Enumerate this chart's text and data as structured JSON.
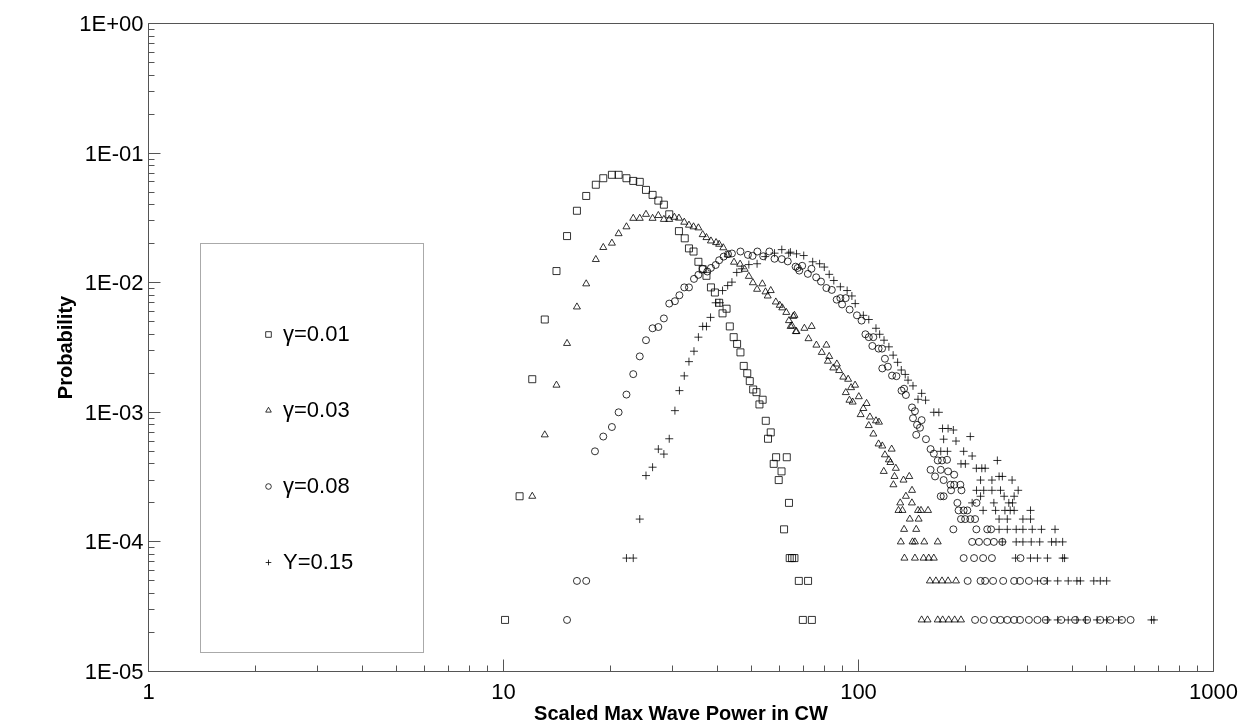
{
  "chart_data": {
    "type": "scatter",
    "xlabel": "Scaled Max Wave Power in CW",
    "ylabel": "Probability",
    "log": "xy",
    "xlim": [
      1,
      1000
    ],
    "xticks": [
      1,
      10,
      100,
      1000
    ],
    "ylim": [
      1e-05,
      1
    ],
    "yticks": [
      {
        "value": 1,
        "label": "1E+00"
      },
      {
        "value": 0.1,
        "label": "1E-01"
      },
      {
        "value": 0.01,
        "label": "1E-02"
      },
      {
        "value": 0.001,
        "label": "1E-03"
      },
      {
        "value": 0.0001,
        "label": "1E-04"
      },
      {
        "value": 1e-05,
        "label": "1E-05"
      }
    ],
    "grid": false,
    "legend": "left",
    "series": [
      {
        "name": "γ=0.01",
        "color": "#000000",
        "marker": "square",
        "x": [
          10.1,
          11.1,
          12.05,
          13.07,
          14.1,
          15.1,
          16.1,
          17.1,
          18.2,
          19.1,
          20.2,
          21.1,
          22.2,
          23.2,
          24.2,
          25.2,
          26.3,
          27.3,
          28.3,
          29.3,
          31.2,
          32.4,
          33.3,
          34.3,
          35.4,
          36.4,
          37.3,
          38.4,
          39.4,
          40.5,
          41.4,
          42.5,
          43.4,
          44.5,
          45.5,
          46.5,
          47.5,
          48.6,
          49.4,
          50.5,
          51.6,
          52.6,
          53.7,
          54.8,
          55.6,
          56.6,
          57.7,
          58.6,
          59.6,
          60.7,
          62.8,
          63.7,
          61.7,
          64,
          65,
          66,
          67.9,
          72.1,
          69.7,
          73.9
        ],
        "values": [
          2.5e-05,
          0.000225,
          0.0018,
          0.0052,
          0.0123,
          0.0229,
          0.0359,
          0.0467,
          0.057,
          0.064,
          0.068,
          0.068,
          0.064,
          0.061,
          0.06,
          0.052,
          0.0476,
          0.043,
          0.04,
          0.0337,
          0.025,
          0.022,
          0.0184,
          0.0174,
          0.0145,
          0.0127,
          0.0113,
          0.0092,
          0.0084,
          0.007,
          0.0058,
          0.0063,
          0.0046,
          0.0038,
          0.00337,
          0.0029,
          0.00228,
          0.002,
          0.00174,
          0.0015,
          0.00143,
          0.00115,
          0.00125,
          0.00086,
          0.000625,
          0.0007,
          0.0004,
          0.00045,
          0.0003,
          0.00035,
          0.00045,
          0.0002,
          0.000125,
          7.5e-05,
          7.5e-05,
          7.5e-05,
          5e-05,
          5e-05,
          2.5e-05,
          2.5e-05
        ]
      },
      {
        "name": "γ=0.03",
        "color": "#000000",
        "marker": "triangle",
        "x": [
          12.05,
          13.07,
          14.1,
          15.1,
          16.1,
          17.1,
          18.2,
          19.1,
          20.2,
          21.1,
          22.2,
          23.2,
          24.2,
          25.2,
          26.3,
          27.3,
          28.3,
          29.3,
          30.3,
          31.2,
          32.3,
          33.3,
          34.3,
          35.4,
          36.4,
          37.3,
          38.4,
          39.7,
          40.5,
          41.6,
          42.8,
          44.6,
          46.4,
          47.8,
          49.1,
          50.4,
          51.8,
          53.6,
          54.7,
          56.6,
          55.5,
          58.5,
          60.0,
          62.6,
          63.7,
          65.0,
          66.0,
          66.9,
          61.0,
          65.5,
          64.4,
          66.6,
          70.4,
          73.8,
          72.3,
          76.1,
          78.8,
          81.2,
          82.7,
          82.0,
          84.9,
          86.9,
          88.2,
          90.6,
          93.5,
          92.1,
          95.3,
          97.8,
          94.3,
          96.3,
          100.2,
          103.2,
          105.4,
          101.4,
          107.7,
          112.0,
          114.2,
          106.9,
          110.1,
          113.9,
          116.7,
          118.7,
          124.0,
          121.8,
          123.0,
          127.4,
          117.8,
          126.3,
          133.9,
          139.0,
          125.4,
          141.5,
          136.0,
          131.1,
          141.4,
          129.6,
          133.0,
          147.1,
          150.0,
          157.0,
          139.5,
          147.7,
          134.4,
          145.4,
          131.6,
          142,
          144.2,
          153.2,
          167.2,
          134.7,
          144.2,
          152.5,
          157.7,
          163,
          158.9,
          165.2,
          171.9,
          178.8,
          188.2,
          150.6,
          156.5,
          167.2,
          172.6,
          179.5,
          186.6,
          194.4
        ],
        "values": [
          0.000225,
          0.00067,
          0.00162,
          0.0034,
          0.0065,
          0.0098,
          0.0151,
          0.0187,
          0.0202,
          0.0239,
          0.027,
          0.0314,
          0.0314,
          0.0337,
          0.0314,
          0.033,
          0.0308,
          0.0308,
          0.032,
          0.0315,
          0.0293,
          0.0278,
          0.027,
          0.0265,
          0.0235,
          0.0223,
          0.021,
          0.0204,
          0.0198,
          0.0186,
          0.0164,
          0.0144,
          0.0139,
          0.0127,
          0.0112,
          0.01,
          0.0089,
          0.0098,
          0.0085,
          0.0087,
          0.0079,
          0.0071,
          0.0067,
          0.0059,
          0.0051,
          0.00465,
          0.0056,
          0.0042,
          0.0064,
          0.0055,
          0.0046,
          0.0042,
          0.00445,
          0.0046,
          0.0037,
          0.0033,
          0.0029,
          0.0033,
          0.0027,
          0.00248,
          0.0022,
          0.00236,
          0.0021,
          0.00187,
          0.0018,
          0.00142,
          0.00155,
          0.00162,
          0.00124,
          0.0012,
          0.00132,
          0.00107,
          0.00117,
          0.00096,
          0.00092,
          0.00086,
          0.00084,
          0.00079,
          0.00068,
          0.00057,
          0.00055,
          0.00047,
          0.00052,
          0.00043,
          0.00041,
          0.00037,
          0.00035,
          0.00032,
          0.0003,
          0.00032,
          0.000276,
          0.00025,
          0.000225,
          0.0002,
          0.0002,
          0.000175,
          0.000175,
          0.000175,
          0.000175,
          0.000175,
          0.00015,
          0.00015,
          0.000125,
          0.000125,
          0.0001,
          0.0001,
          0.0001,
          0.0001,
          0.0001,
          7.5e-05,
          7.5e-05,
          7.5e-05,
          7.5e-05,
          7.5e-05,
          5e-05,
          5e-05,
          5e-05,
          5e-05,
          5e-05,
          2.5e-05,
          2.5e-05,
          2.5e-05,
          2.5e-05,
          2.5e-05,
          2.5e-05,
          2.5e-05
        ]
      },
      {
        "name": "γ=0.08",
        "color": "#000000",
        "marker": "circle",
        "x": [
          15.1,
          16.1,
          17.1,
          18.1,
          19.1,
          20.2,
          21.1,
          22.2,
          23.2,
          24.2,
          25.2,
          26.3,
          27.3,
          28.3,
          29.3,
          30.4,
          31.3,
          32.3,
          33.3,
          34.4,
          35.4,
          36.4,
          37.5,
          38.4,
          39.6,
          40.5,
          41.7,
          42.9,
          44.0,
          46.5,
          48.8,
          50.3,
          51.9,
          53.9,
          56.1,
          58.0,
          60.8,
          63.2,
          66.5,
          68.1,
          67.4,
          69.4,
          72.0,
          73.7,
          76.0,
          78.4,
          81.2,
          84.1,
          86.8,
          88.9,
          92.0,
          89.9,
          94.4,
          99.0,
          102.0,
          104.6,
          106.9,
          110.1,
          109.4,
          113.9,
          116.5,
          118.7,
          116.7,
          121.0,
          124.3,
          127.9,
          132.2,
          134.4,
          136.0,
          141.5,
          144.2,
          142.4,
          150.6,
          146.2,
          149.0,
          145.4,
          154.9,
          159.6,
          163.0,
          167.2,
          171.9,
          177.6,
          159.6,
          164.3,
          170.5,
          178.8,
          186.0,
          173.7,
          181.6,
          186.1,
          193.6,
          182.3,
          195.0,
          170.5,
          173.7,
          189.9,
          215.0,
          191.4,
          197.8,
          202.6,
          194.4,
          199.7,
          206.6,
          213.0,
          185.0,
          214.8,
          230.5,
          236.3,
          209,
          218.5,
          230.5,
          240.6,
          254.2,
          197.8,
          211.6,
          224.4,
          237.6,
          286,
          203,
          220.7,
          227.4,
          239.4,
          255.6,
          274.4,
          285.1,
          302.0,
          332.8,
          213,
          225.3,
          240.6,
          251.2,
          262.5,
          274.4,
          285.1,
          302,
          319.2,
          336.9,
          372.5,
          407.6,
          440.5,
          479.9,
          512.6,
          552.3,
          584.1
        ],
        "values": [
          2.5e-05,
          5e-05,
          5e-05,
          0.0005,
          0.00065,
          0.00077,
          0.001,
          0.00137,
          0.00197,
          0.0027,
          0.0036,
          0.00445,
          0.00455,
          0.0053,
          0.0069,
          0.0072,
          0.008,
          0.0092,
          0.0092,
          0.0107,
          0.0115,
          0.0128,
          0.0122,
          0.013,
          0.0137,
          0.0149,
          0.0159,
          0.0166,
          0.0168,
          0.0174,
          0.0164,
          0.0161,
          0.0174,
          0.016,
          0.0174,
          0.0153,
          0.0152,
          0.0146,
          0.0133,
          0.0124,
          0.013,
          0.0135,
          0.0117,
          0.0128,
          0.011,
          0.0102,
          0.0091,
          0.0088,
          0.0074,
          0.0076,
          0.0076,
          0.0068,
          0.0062,
          0.0056,
          0.0051,
          0.004,
          0.0038,
          0.0038,
          0.00325,
          0.0031,
          0.0031,
          0.00259,
          0.00218,
          0.00225,
          0.00192,
          0.0019,
          0.00147,
          0.00152,
          0.00136,
          0.00109,
          0.00102,
          0.0009,
          0.00087,
          0.0008,
          0.00076,
          0.00067,
          0.00062,
          0.00052,
          0.00048,
          0.000425,
          0.000425,
          0.00043,
          0.00036,
          0.00032,
          0.00036,
          0.00035,
          0.00033,
          0.0003,
          0.000276,
          0.000276,
          0.000276,
          0.00025,
          0.00025,
          0.000225,
          0.000225,
          0.0002,
          0.0002,
          0.000175,
          0.000175,
          0.000175,
          0.00015,
          0.00015,
          0.00015,
          0.00015,
          0.000125,
          0.000125,
          0.000125,
          0.000125,
          0.0001,
          0.0001,
          0.0001,
          0.0001,
          0.0001,
          7.5e-05,
          7.5e-05,
          7.5e-05,
          7.5e-05,
          7.5e-05,
          5e-05,
          5e-05,
          5e-05,
          5e-05,
          5e-05,
          5e-05,
          5e-05,
          5e-05,
          5e-05,
          2.5e-05,
          2.5e-05,
          2.5e-05,
          2.5e-05,
          2.5e-05,
          2.5e-05,
          2.5e-05,
          2.5e-05,
          2.5e-05,
          2.5e-05,
          2.5e-05,
          2.5e-05,
          2.5e-05,
          2.5e-05,
          2.5e-05,
          2.5e-05,
          2.5e-05
        ]
      },
      {
        "name": "Y=0.15",
        "color": "#000000",
        "marker": "cross",
        "x": [
          22.2,
          23.2,
          24.2,
          25.2,
          26.3,
          27.3,
          28.3,
          29.3,
          30.4,
          31.3,
          32.3,
          33.3,
          34.4,
          35.4,
          36.4,
          37.3,
          38.3,
          39.6,
          40.7,
          41.4,
          42.8,
          44.0,
          45.4,
          46.9,
          49.1,
          51.8,
          54.6,
          58.0,
          60.8,
          63.6,
          66.9,
          64.3,
          70.1,
          74.3,
          77.7,
          80.1,
          82.7,
          85.2,
          88.9,
          92.9,
          95.8,
          97.9,
          103.2,
          106.9,
          112.0,
          114.7,
          118.0,
          121.8,
          125.2,
          128.9,
          132.0,
          135.4,
          137.9,
          142.4,
          150.6,
          147.1,
          154.5,
          163.0,
          168.4,
          172.5,
          178.8,
          185.0,
          206.5,
          173.7,
          188.2,
          170.5,
          178,
          197.8,
          209,
          246.1,
          194.4,
          200,
          214.8,
          222.5,
          227.4,
          220.7,
          237.6,
          248.9,
          254.2,
          270.8,
          281.7,
          215,
          225.3,
          237.6,
          251.2,
          220.7,
          257.2,
          274.4,
          209,
          240.6,
          265.1,
          271.6,
          224.4,
          243.3,
          258.5,
          267.5,
          274.4,
          305.2,
          248.9,
          262.5,
          290.5,
          305.2,
          248.9,
          262.5,
          278.1,
          290.5,
          308.6,
          327.6,
          357.8,
          254.2,
          278.1,
          290.5,
          306.6,
          323.9,
          349.8,
          360,
          375.9,
          277,
          305.2,
          319.2,
          340.6,
          375.9,
          380.6,
          319.2,
          340.6,
          364,
          389.8,
          412.3,
          421.7,
          460,
          479.9,
          500,
          340.6,
          364,
          389.8,
          412.3,
          435.8,
          469.9,
          500,
          540.2,
          668.8,
          679.6
        ],
        "values": [
          7.5e-05,
          7.5e-05,
          0.00015,
          0.000325,
          0.000377,
          0.00052,
          0.000476,
          0.000625,
          0.00103,
          0.00147,
          0.00191,
          0.00246,
          0.00296,
          0.0038,
          0.0046,
          0.0046,
          0.0054,
          0.007,
          0.007,
          0.0087,
          0.0095,
          0.0101,
          0.012,
          0.0128,
          0.0138,
          0.014,
          0.0159,
          0.0169,
          0.018,
          0.0169,
          0.0167,
          0.0172,
          0.0162,
          0.0145,
          0.014,
          0.0132,
          0.0116,
          0.0104,
          0.0093,
          0.0087,
          0.0079,
          0.0069,
          0.0056,
          0.0052,
          0.00445,
          0.004,
          0.0036,
          0.0032,
          0.00276,
          0.00243,
          0.00212,
          0.00196,
          0.00177,
          0.0016,
          0.0014,
          0.00126,
          0.00124,
          0.001,
          0.001,
          0.00075,
          0.00075,
          0.00073,
          0.00065,
          0.00062,
          0.0006,
          0.0005,
          0.0005,
          0.0005,
          0.00046,
          0.000425,
          0.0004,
          0.0004,
          0.00037,
          0.00037,
          0.00037,
          0.0003,
          0.0003,
          0.00032,
          0.00032,
          0.0003,
          0.00025,
          0.00025,
          0.00025,
          0.00025,
          0.00025,
          0.000225,
          0.000225,
          0.000225,
          0.0002,
          0.0002,
          0.0002,
          0.0002,
          0.000175,
          0.000175,
          0.000175,
          0.000175,
          0.000175,
          0.000175,
          0.00015,
          0.00015,
          0.00015,
          0.00015,
          0.000125,
          0.000125,
          0.000125,
          0.000125,
          0.000125,
          0.000125,
          0.000125,
          0.0001,
          0.0001,
          0.0001,
          0.0001,
          0.0001,
          0.0001,
          0.0001,
          0.0001,
          7.5e-05,
          7.5e-05,
          7.5e-05,
          7.5e-05,
          7.5e-05,
          7.5e-05,
          5e-05,
          5e-05,
          5e-05,
          5e-05,
          5e-05,
          5e-05,
          5e-05,
          5e-05,
          5e-05,
          2.5e-05,
          2.5e-05,
          2.5e-05,
          2.5e-05,
          2.5e-05,
          2.5e-05,
          2.5e-05,
          2.5e-05,
          2.5e-05,
          2.5e-05
        ]
      }
    ]
  }
}
